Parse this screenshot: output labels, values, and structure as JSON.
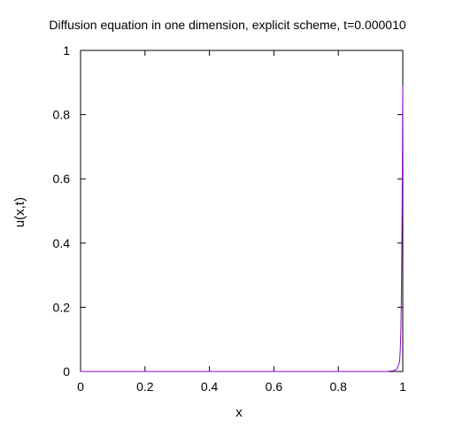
{
  "chart_data": {
    "type": "line",
    "title": "Diffusion equation in one dimension, explicit scheme, t=0.000010",
    "xlabel": "x",
    "ylabel": "u(x,t)",
    "xlim": [
      0,
      1
    ],
    "ylim": [
      0,
      1
    ],
    "xticks": [
      "0",
      "0.2",
      "0.4",
      "0.6",
      "0.8",
      "1"
    ],
    "yticks": [
      "0",
      "0.2",
      "0.4",
      "0.6",
      "0.8",
      "1"
    ],
    "grid": false,
    "legend": "none",
    "series": [
      {
        "color": "#9400d3",
        "x": [
          0.0,
          0.1,
          0.2,
          0.3,
          0.4,
          0.5,
          0.6,
          0.7,
          0.8,
          0.9,
          0.95,
          0.97,
          0.98,
          0.985,
          0.99,
          0.992,
          0.994,
          0.996,
          0.998,
          1.0
        ],
        "y": [
          0,
          0,
          0,
          0,
          0,
          0,
          0,
          0,
          0,
          0,
          0.0,
          0.002,
          0.006,
          0.015,
          0.03,
          0.06,
          0.12,
          0.25,
          0.5,
          0.89
        ]
      }
    ]
  }
}
